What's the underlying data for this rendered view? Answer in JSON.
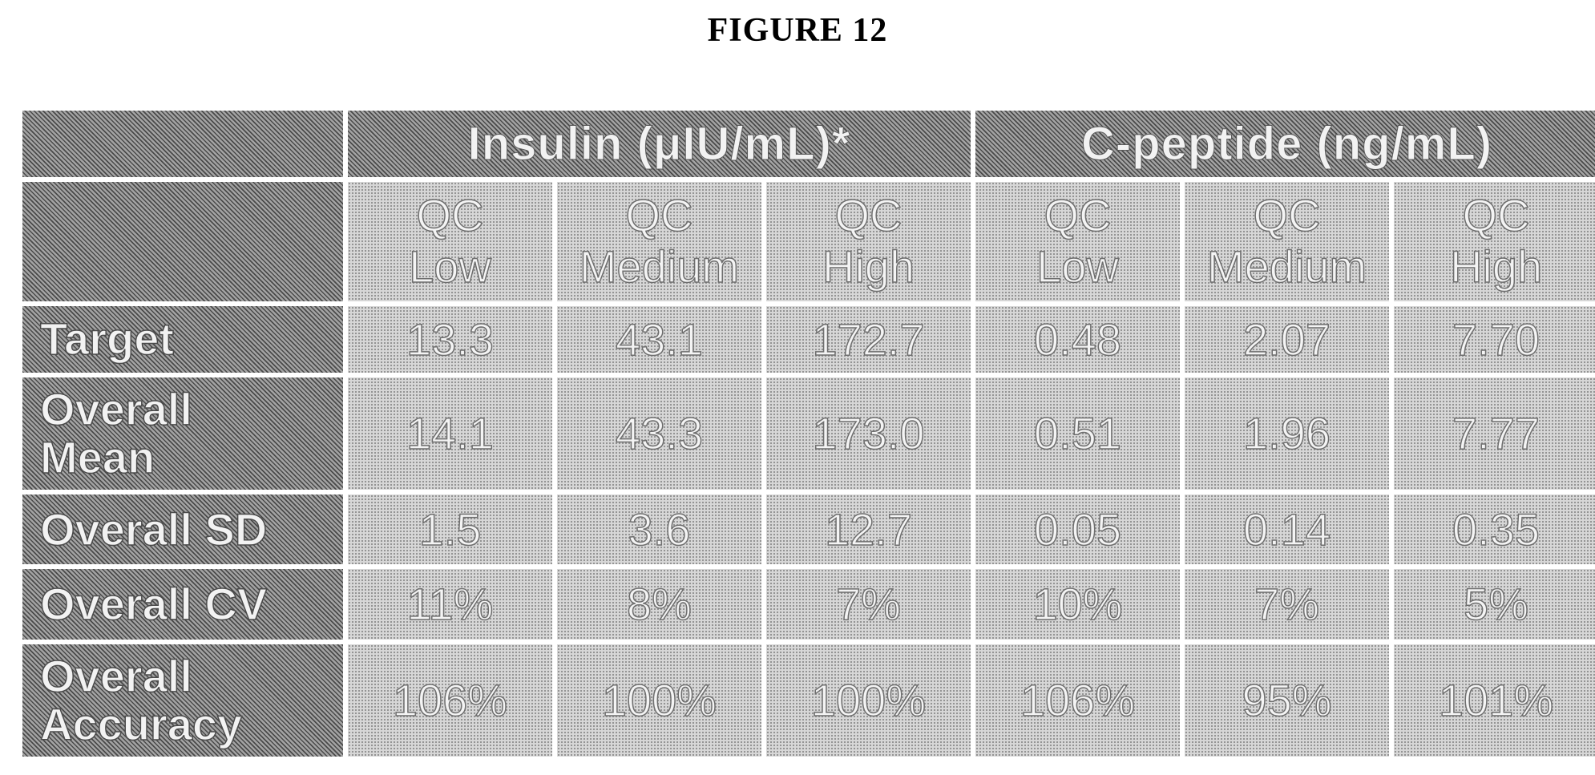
{
  "figure_title": "FIGURE 12",
  "table": {
    "groups": [
      {
        "label": "Insulin (μIU/mL)*"
      },
      {
        "label": "C-peptide (ng/mL)"
      }
    ],
    "subheaders": [
      {
        "line1": "QC",
        "line2": "Low"
      },
      {
        "line1": "QC",
        "line2": "Medium"
      },
      {
        "line1": "QC",
        "line2": "High"
      },
      {
        "line1": "QC",
        "line2": "Low"
      },
      {
        "line1": "QC",
        "line2": "Medium"
      },
      {
        "line1": "QC",
        "line2": "High"
      }
    ],
    "rows": [
      {
        "line1": "Target",
        "line2": "",
        "values": [
          "13.3",
          "43.1",
          "172.7",
          "0.48",
          "2.07",
          "7.70"
        ]
      },
      {
        "line1": "Overall",
        "line2": "Mean",
        "values": [
          "14.1",
          "43.3",
          "173.0",
          "0.51",
          "1.96",
          "7.77"
        ]
      },
      {
        "line1": "Overall SD",
        "line2": "",
        "values": [
          "1.5",
          "3.6",
          "12.7",
          "0.05",
          "0.14",
          "0.35"
        ]
      },
      {
        "line1": "Overall CV",
        "line2": "",
        "values": [
          "11%",
          "8%",
          "7%",
          "10%",
          "7%",
          "5%"
        ]
      },
      {
        "line1": "Overall",
        "line2": "Accuracy",
        "values": [
          "106%",
          "100%",
          "100%",
          "106%",
          "95%",
          "101%"
        ]
      }
    ]
  },
  "colors": {
    "header_fill": "#7b7b7b",
    "cell_fill": "#d7d7d7",
    "text_fill": "#f4f4f4"
  }
}
